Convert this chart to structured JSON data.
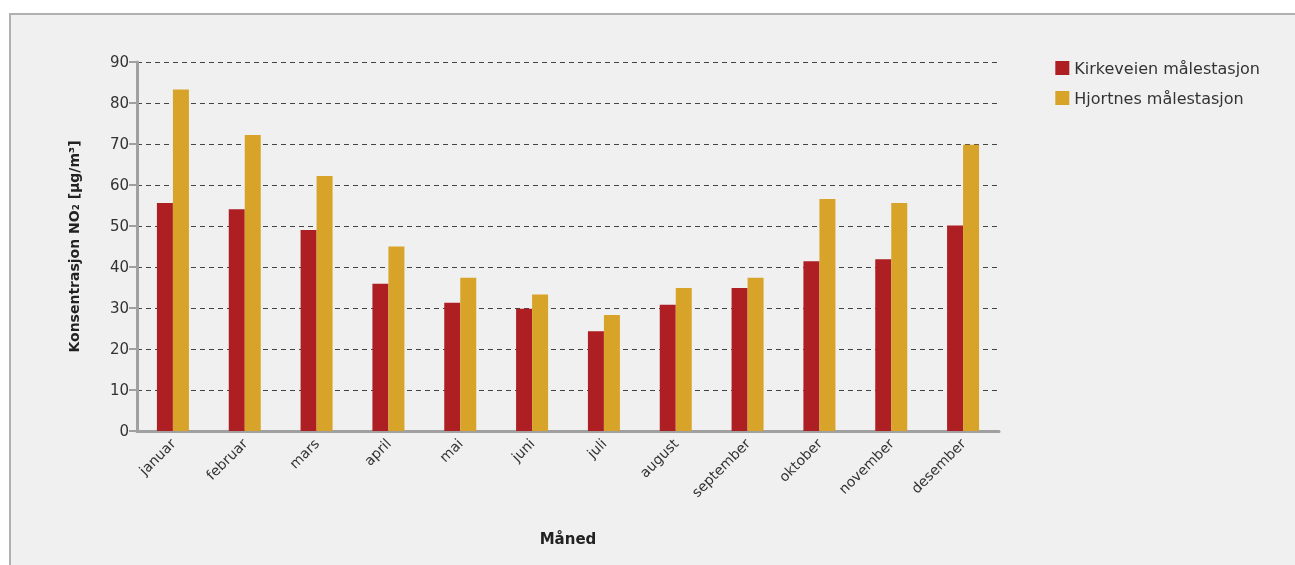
{
  "chart_data": {
    "type": "bar",
    "xlabel": "Måned",
    "ylabel": "Konsentrasjon NO₂ [µg/m³]",
    "categories": [
      "januar",
      "februar",
      "mars",
      "april",
      "mai",
      "juni",
      "juli",
      "august",
      "september",
      "oktober",
      "november",
      "desember"
    ],
    "series": [
      {
        "name": "Kirkeveien målestasjon",
        "color": "#ae1f24",
        "values": [
          55.6,
          54.1,
          49.0,
          35.9,
          31.3,
          29.8,
          24.3,
          30.8,
          34.9,
          41.4,
          41.9,
          50.1
        ]
      },
      {
        "name": "Hjortnes målestasjon",
        "color": "#d7a429",
        "values": [
          83.3,
          72.2,
          62.2,
          45.0,
          37.4,
          33.3,
          28.3,
          34.9,
          37.4,
          56.6,
          55.6,
          69.8
        ]
      }
    ],
    "ylim": [
      0,
      90
    ],
    "yticks": [
      0,
      10,
      20,
      30,
      40,
      50,
      60,
      70,
      80,
      90
    ],
    "grid": "y",
    "legend": "top right"
  }
}
